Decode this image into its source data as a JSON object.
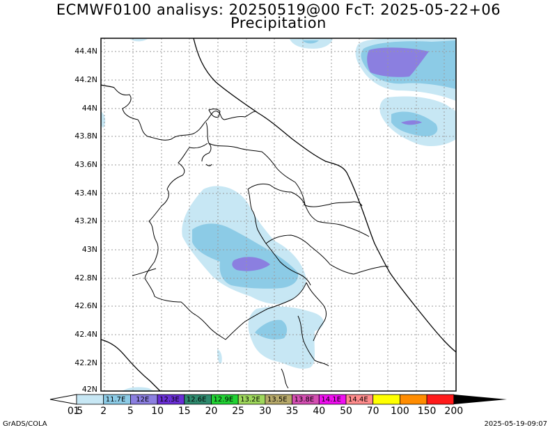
{
  "title_line1": "ECMWF0100 analisys: 20250519@00 FcT: 2025-05-22+06",
  "title_line2": "Precipitation",
  "lat_labels": [
    "44.4N",
    "44.2N",
    "44N",
    "43.8N",
    "43.6N",
    "43.4N",
    "43.2N",
    "43N",
    "42.8N",
    "42.6N",
    "42.4N",
    "42.2N",
    "42N"
  ],
  "colorbar": {
    "labels": [
      "0.5",
      "1",
      "2",
      "5",
      "10",
      "15",
      "20",
      "25",
      "30",
      "35",
      "40",
      "50",
      "70",
      "100",
      "150",
      "200"
    ],
    "colors": [
      "#ffffff",
      "#c7e7f4",
      "#8ccbe6",
      "#8b7fe0",
      "#6a2fd6",
      "#2e8a6e",
      "#21d233",
      "#9fd85c",
      "#b7a96a",
      "#d44fb2",
      "#f00ff0",
      "#ff8c8c",
      "#ffff00",
      "#ff8c00",
      "#ff1a1a",
      "#8b0000"
    ],
    "overlay_labels": [
      "11.7E",
      "12E",
      "12.3E",
      "12.6E",
      "12.9E",
      "13.2E",
      "13.5E",
      "13.8E",
      "14.1E",
      "14.4E"
    ]
  },
  "footer_left": "GrADS/COLA",
  "footer_right": "2025-05-19-09:07"
}
